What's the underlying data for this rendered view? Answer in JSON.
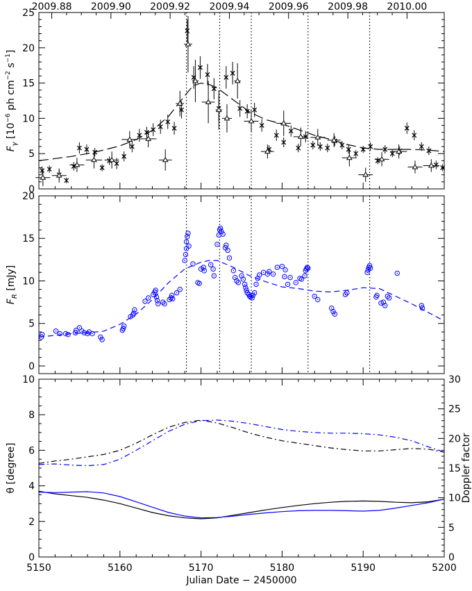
{
  "chart_data": [
    {
      "type": "scatter",
      "panel": "gamma-ray flux",
      "ylabel": "F_γ [10⁻⁶ ph cm⁻² s⁻¹]",
      "ylabel_parts": [
        "F",
        "γ",
        " [10",
        "−6",
        " ph cm",
        "−2",
        " s",
        "−1",
        "]"
      ],
      "top_axis_label": "",
      "top_ticks": [
        "2009.88",
        "2009.90",
        "2009.92",
        "2009.94",
        "2009.96",
        "2009.98",
        "2010.00"
      ],
      "top_tick_jd": [
        5151.59,
        5158.89,
        5166.19,
        5173.5,
        5180.8,
        5188.11,
        5195.41
      ],
      "xlim": [
        5150,
        5200
      ],
      "ylim": [
        0,
        25
      ],
      "yticks": [
        0,
        5,
        10,
        15,
        20,
        25
      ],
      "vlines_jd": [
        5168.2,
        5172.3,
        5176.2,
        5183.2,
        5190.8
      ],
      "series": [
        {
          "marker": "x",
          "color": "#000000",
          "x": [
            5150.4,
            5151.3,
            5152.5,
            5153.4,
            5154.3,
            5155.0,
            5155.9,
            5156.9,
            5157.8,
            5158.7,
            5159.6,
            5160.5,
            5161.5,
            5162.4,
            5163.3,
            5164.1,
            5165.0,
            5165.9,
            5166.7,
            5167.6,
            5168.3,
            5169.1,
            5169.9,
            5170.8,
            5171.6,
            5172.2,
            5173.1,
            5173.9,
            5174.8,
            5175.7,
            5176.6,
            5177.5,
            5178.4,
            5179.3,
            5180.2,
            5181.1,
            5182.0,
            5182.9,
            5183.8,
            5184.7,
            5185.6,
            5186.5,
            5187.4,
            5188.2,
            5189.1,
            5190.0,
            5190.9,
            5191.8,
            5192.7,
            5193.6,
            5194.5,
            5195.4,
            5196.3,
            5197.2,
            5198.1,
            5199.0,
            5199.8
          ],
          "y": [
            2.6,
            2.8,
            2.0,
            1.2,
            3.2,
            5.8,
            5.6,
            5.2,
            3.0,
            4.0,
            3.6,
            4.6,
            6.0,
            7.6,
            8.0,
            8.4,
            8.8,
            9.5,
            8.6,
            11.2,
            22.4,
            15.8,
            17.2,
            16.2,
            14.2,
            11.4,
            15.8,
            16.4,
            11.4,
            11.0,
            11.2,
            9.0,
            5.6,
            7.6,
            6.6,
            8.2,
            5.8,
            7.4,
            6.2,
            6.0,
            5.8,
            6.8,
            6.2,
            5.6,
            5.0,
            5.6,
            6.0,
            4.0,
            5.6,
            5.0,
            5.4,
            8.6,
            7.6,
            6.0,
            5.4,
            3.4,
            3.0
          ],
          "yerr": [
            0.6,
            0.5,
            0.7,
            0.4,
            0.6,
            0.8,
            0.7,
            0.6,
            0.5,
            0.6,
            0.8,
            0.7,
            0.8,
            0.9,
            0.8,
            0.9,
            1.0,
            1.0,
            0.9,
            1.2,
            1.6,
            1.6,
            1.6,
            1.5,
            1.5,
            1.8,
            1.6,
            1.6,
            1.2,
            1.0,
            1.0,
            0.9,
            0.6,
            0.8,
            0.7,
            0.8,
            0.6,
            0.8,
            0.6,
            0.6,
            0.6,
            0.7,
            0.6,
            0.6,
            0.5,
            0.5,
            0.6,
            0.5,
            0.6,
            0.5,
            0.6,
            0.8,
            0.7,
            0.6,
            0.6,
            0.6,
            0.5
          ]
        },
        {
          "marker": "triangle",
          "color": "#000000",
          "x": [
            5150.5,
            5152.5,
            5154.7,
            5156.8,
            5159.0,
            5161.2,
            5163.5,
            5165.6,
            5167.4,
            5168.4,
            5169.3,
            5170.9,
            5172.2,
            5173.2,
            5174.5,
            5176.2,
            5178.2,
            5180.2,
            5182.3,
            5184.4,
            5186.4,
            5188.3,
            5190.3,
            5192.3,
            5194.4,
            5196.4,
            5198.4
          ],
          "y": [
            1.6,
            1.9,
            3.4,
            4.1,
            4.1,
            7.0,
            7.1,
            4.1,
            12.1,
            20.5,
            15.3,
            12.3,
            11.2,
            10.0,
            15.3,
            9.6,
            5.3,
            9.3,
            7.4,
            7.3,
            6.9,
            4.4,
            2.0,
            4.2,
            5.3,
            3.1,
            3.3
          ],
          "xerr": [
            0.9,
            0.9,
            0.9,
            1.0,
            0.9,
            1.0,
            1.0,
            0.8,
            0.5,
            0.5,
            0.4,
            0.8,
            0.4,
            0.6,
            0.4,
            0.9,
            0.8,
            0.9,
            0.9,
            0.9,
            0.8,
            0.9,
            0.9,
            0.9,
            1.0,
            0.9,
            1.0
          ],
          "yerr": [
            1.2,
            1.0,
            1.0,
            1.2,
            1.2,
            1.2,
            1.2,
            1.5,
            1.8,
            4.0,
            3.0,
            3.0,
            2.8,
            2.0,
            2.5,
            1.5,
            1.0,
            1.8,
            1.3,
            1.2,
            1.0,
            1.2,
            1.0,
            1.0,
            1.0,
            0.9,
            0.9
          ]
        }
      ],
      "model_curve": {
        "style": "long-dash",
        "color": "#000000",
        "x": [
          5150,
          5152,
          5154,
          5156,
          5158,
          5160,
          5162,
          5164,
          5166,
          5168,
          5169,
          5170,
          5171,
          5172,
          5174,
          5176,
          5178,
          5180,
          5182,
          5184,
          5186,
          5188,
          5190,
          5192,
          5194,
          5196,
          5198,
          5200
        ],
        "y": [
          4.0,
          4.3,
          4.6,
          5.0,
          5.5,
          6.1,
          7.0,
          8.3,
          10.3,
          13.2,
          14.6,
          15.0,
          14.8,
          14.3,
          12.6,
          10.9,
          9.8,
          9.2,
          8.4,
          7.6,
          7.0,
          6.3,
          5.8,
          5.6,
          5.6,
          5.6,
          5.5,
          5.3
        ]
      }
    },
    {
      "type": "scatter",
      "panel": "optical R-band flux",
      "ylabel": "F_R [mJy]",
      "ylabel_parts": [
        "F",
        "R",
        " [mJy]"
      ],
      "xlim": [
        5150,
        5200
      ],
      "ylim": [
        -0.9,
        20
      ],
      "yticks": [
        0,
        5,
        10,
        15,
        20
      ],
      "vlines_jd": [
        5168.2,
        5172.3,
        5176.2,
        5183.2,
        5190.8
      ],
      "series": [
        {
          "marker": "circle-dot",
          "color": "#0000ff",
          "x": [
            5150.3,
            5150.4,
            5152.1,
            5152.6,
            5153.3,
            5153.6,
            5154.5,
            5154.6,
            5155.0,
            5155.3,
            5155.6,
            5156.0,
            5156.2,
            5156.6,
            5157.6,
            5157.8,
            5160.3,
            5160.4,
            5160.5,
            5161.3,
            5161.6,
            5161.7,
            5161.8,
            5163.1,
            5163.5,
            5164.1,
            5164.3,
            5164.4,
            5164.5,
            5164.6,
            5164.7,
            5165.3,
            5165.5,
            5166.1,
            5166.3,
            5166.4,
            5166.5,
            5167.0,
            5167.4,
            5168.0,
            5168.1,
            5168.2,
            5168.2,
            5168.3,
            5168.4,
            5168.5,
            5169.0,
            5169.6,
            5169.8,
            5170.0,
            5170.3,
            5170.4,
            5171.2,
            5171.5,
            5171.6,
            5172.0,
            5172.2,
            5172.3,
            5172.4,
            5172.5,
            5172.7,
            5173.0,
            5173.1,
            5173.3,
            5173.5,
            5174.0,
            5174.2,
            5174.4,
            5174.6,
            5175.0,
            5175.2,
            5175.4,
            5175.5,
            5175.6,
            5175.7,
            5175.9,
            5176.0,
            5176.1,
            5176.3,
            5176.4,
            5176.6,
            5176.8,
            5177.0,
            5177.2,
            5177.7,
            5178.2,
            5178.4,
            5178.9,
            5179.4,
            5180.0,
            5180.3,
            5180.4,
            5180.7,
            5181.0,
            5181.7,
            5182.2,
            5182.4,
            5182.8,
            5182.9,
            5183.0,
            5183.1,
            5183.2,
            5184.0,
            5184.4,
            5186.1,
            5186.3,
            5186.5,
            5187.8,
            5188.0,
            5190.5,
            5190.6,
            5190.7,
            5190.8,
            5190.9,
            5191.6,
            5191.7,
            5192.2,
            5192.5,
            5192.7,
            5193.0,
            5193.2,
            5194.2,
            5197.2,
            5197.3
          ],
          "y": [
            3.4,
            3.7,
            4.1,
            3.8,
            3.8,
            3.7,
            3.9,
            4.2,
            4.5,
            4.1,
            3.9,
            3.8,
            4.0,
            3.8,
            3.4,
            3.1,
            4.2,
            4.4,
            4.7,
            5.8,
            6.0,
            6.2,
            6.6,
            7.6,
            8.0,
            8.4,
            8.7,
            8.9,
            8.1,
            7.7,
            7.3,
            7.5,
            7.3,
            7.8,
            8.0,
            8.3,
            7.9,
            8.6,
            9.0,
            12.4,
            13.1,
            13.8,
            14.6,
            15.2,
            15.6,
            14.1,
            12.0,
            9.8,
            9.7,
            11.4,
            11.6,
            11.2,
            11.9,
            11.4,
            10.6,
            14.3,
            15.4,
            16.0,
            16.2,
            15.8,
            15.5,
            13.9,
            14.2,
            13.6,
            12.7,
            11.2,
            10.4,
            10.0,
            9.8,
            10.6,
            10.2,
            9.6,
            9.2,
            8.9,
            8.6,
            8.4,
            8.2,
            8.1,
            8.0,
            8.3,
            8.6,
            9.6,
            10.3,
            10.7,
            11.0,
            10.8,
            11.1,
            10.8,
            11.6,
            11.7,
            10.5,
            11.3,
            9.6,
            10.4,
            9.8,
            10.3,
            10.2,
            10.6,
            11.2,
            11.4,
            11.6,
            11.5,
            8.2,
            7.8,
            6.8,
            6.4,
            6.1,
            8.4,
            8.6,
            11.0,
            11.3,
            11.6,
            11.8,
            11.5,
            8.1,
            8.3,
            7.4,
            7.5,
            7.1,
            8.2,
            8.0,
            10.9,
            7.1,
            6.8
          ]
        }
      ],
      "model_curve": {
        "style": "dash",
        "color": "#0000ff",
        "x": [
          5150,
          5152,
          5154,
          5156,
          5158,
          5160,
          5162,
          5164,
          5166,
          5168,
          5170,
          5171,
          5172,
          5174,
          5176,
          5178,
          5180,
          5182,
          5184,
          5186,
          5188,
          5190,
          5192,
          5194,
          5196,
          5198,
          5200
        ],
        "y": [
          3.4,
          3.6,
          3.8,
          3.9,
          4.1,
          4.9,
          6.1,
          7.8,
          9.8,
          11.4,
          12.2,
          12.4,
          12.4,
          11.6,
          10.6,
          9.9,
          9.3,
          9.1,
          8.8,
          8.7,
          8.9,
          9.2,
          9.1,
          8.2,
          7.3,
          6.3,
          5.3
        ]
      }
    },
    {
      "type": "line",
      "panel": "viewing angle and Doppler factor",
      "xlabel": "Julian Date − 2450000",
      "ylabel": "θ [degree]",
      "y2label": "Doppler factor",
      "xlim": [
        5150,
        5200
      ],
      "xticks": [
        5150,
        5160,
        5170,
        5180,
        5190,
        5200
      ],
      "ylim": [
        0,
        10
      ],
      "yticks": [
        0,
        2,
        4,
        6,
        8,
        10
      ],
      "y2lim": [
        0,
        30
      ],
      "y2ticks": [
        0,
        5,
        10,
        15,
        20,
        25,
        30
      ],
      "series": [
        {
          "axis": "left",
          "style": "solid",
          "color": "#000000",
          "x": [
            5150,
            5152,
            5154,
            5156,
            5158,
            5160,
            5162,
            5164,
            5166,
            5168,
            5170,
            5172,
            5174,
            5176,
            5178,
            5180,
            5182,
            5184,
            5186,
            5188,
            5190,
            5192,
            5194,
            5196,
            5198,
            5200
          ],
          "y": [
            3.7,
            3.55,
            3.45,
            3.35,
            3.2,
            3.0,
            2.75,
            2.5,
            2.32,
            2.2,
            2.15,
            2.2,
            2.35,
            2.5,
            2.65,
            2.78,
            2.9,
            3.0,
            3.08,
            3.13,
            3.15,
            3.13,
            3.08,
            3.05,
            3.1,
            3.25
          ]
        },
        {
          "axis": "left",
          "style": "solid",
          "color": "#0000ff",
          "x": [
            5150,
            5152,
            5154,
            5156,
            5158,
            5160,
            5162,
            5164,
            5166,
            5168,
            5170,
            5172,
            5174,
            5176,
            5178,
            5180,
            5182,
            5184,
            5186,
            5188,
            5190,
            5192,
            5194,
            5196,
            5198,
            5200
          ],
          "y": [
            3.65,
            3.62,
            3.65,
            3.67,
            3.6,
            3.4,
            3.1,
            2.8,
            2.5,
            2.3,
            2.2,
            2.22,
            2.3,
            2.4,
            2.48,
            2.55,
            2.6,
            2.62,
            2.62,
            2.6,
            2.58,
            2.62,
            2.75,
            2.9,
            3.05,
            3.25
          ]
        },
        {
          "axis": "right",
          "style": "dash-dot",
          "color": "#000000",
          "x": [
            5150,
            5152,
            5154,
            5156,
            5158,
            5160,
            5162,
            5164,
            5166,
            5168,
            5170,
            5172,
            5174,
            5176,
            5178,
            5180,
            5182,
            5184,
            5186,
            5188,
            5190,
            5192,
            5194,
            5196,
            5198,
            5200
          ],
          "y": [
            15.8,
            16.2,
            16.5,
            16.9,
            17.3,
            18.0,
            19.2,
            20.6,
            21.9,
            22.7,
            23.1,
            22.6,
            21.8,
            20.9,
            20.2,
            19.6,
            19.2,
            18.8,
            18.4,
            18.1,
            17.9,
            17.9,
            18.1,
            18.3,
            18.2,
            17.7
          ]
        },
        {
          "axis": "right",
          "style": "dash-dot",
          "color": "#0000ff",
          "x": [
            5150,
            5152,
            5154,
            5156,
            5158,
            5160,
            5162,
            5164,
            5166,
            5168,
            5170,
            5172,
            5174,
            5176,
            5178,
            5180,
            5182,
            5184,
            5186,
            5188,
            5190,
            5192,
            5194,
            5196,
            5198,
            5200
          ],
          "y": [
            15.6,
            15.7,
            15.5,
            15.4,
            15.6,
            16.5,
            18.0,
            19.6,
            21.2,
            22.4,
            23.0,
            23.1,
            22.9,
            22.5,
            22.0,
            21.5,
            21.2,
            21.0,
            20.9,
            20.9,
            20.8,
            20.6,
            20.2,
            19.6,
            18.6,
            17.7
          ]
        }
      ]
    }
  ]
}
